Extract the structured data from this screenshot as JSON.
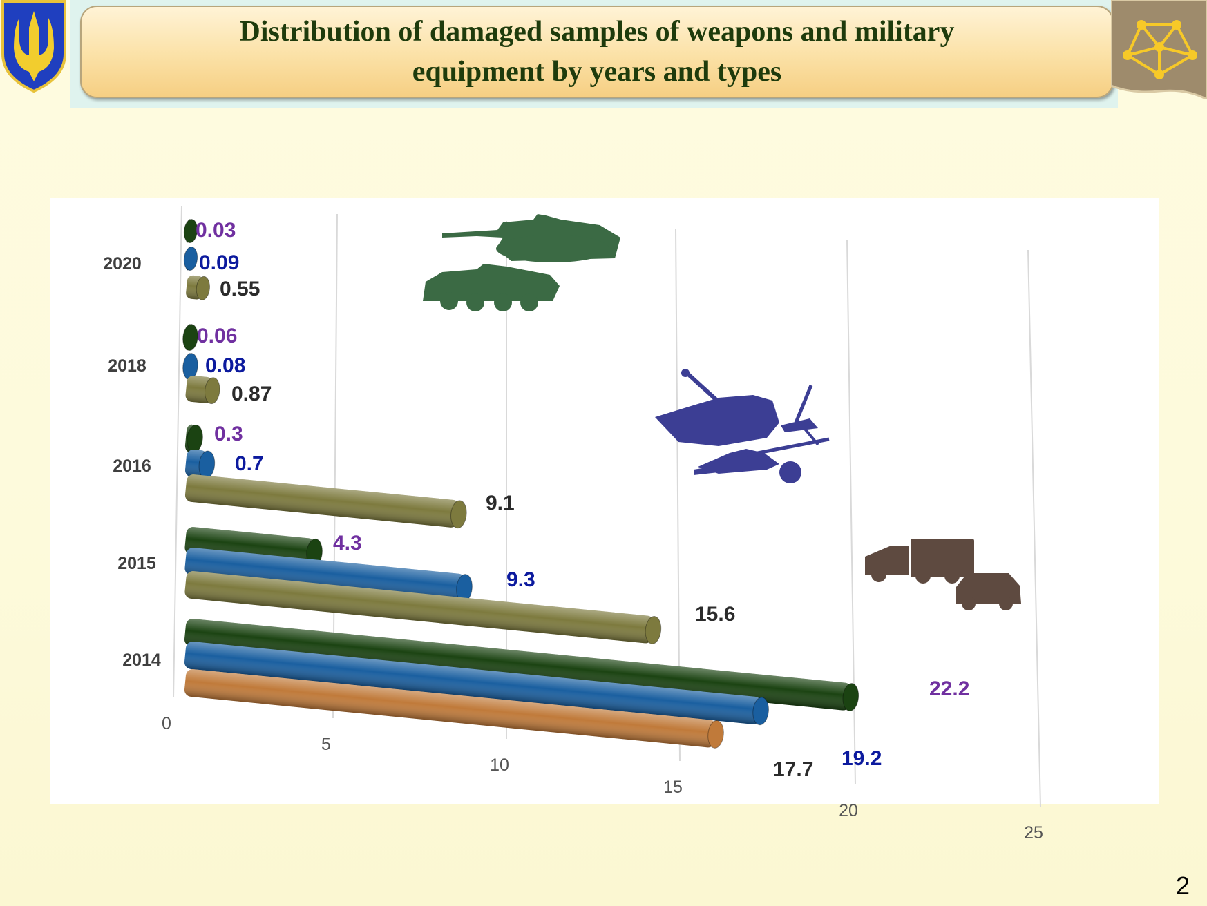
{
  "title": {
    "line1": "Distribution of damaged  samples of weapons and military",
    "line2": "equipment by years and types"
  },
  "page_number": "2",
  "icons": {
    "left": "ukraine-trident-emblem-icon",
    "right": "network-node-logo-icon",
    "armored_vehicles": "tank-and-apc-silhouette-icon",
    "artillery": "artillery-silhouette-icon",
    "vehicles": "trucks-silhouette-icon"
  },
  "colors": {
    "armored": "#1b4312",
    "artillery_bar": "#1a5fa0",
    "vehicles_bar": "#7d7a3e",
    "vehicles_2014": "#c07a3a",
    "label_purple": "#7030a0",
    "label_blue": "#0c1a9e",
    "label_dark": "#2b2b2b"
  },
  "chart_data": {
    "type": "bar",
    "orientation": "horizontal",
    "style": "3d-cylinder",
    "categories": [
      "2020",
      "2018",
      "2016",
      "2015",
      "2014"
    ],
    "series": [
      {
        "values": [
          0.03,
          0.06,
          0.3,
          4.3,
          22.2
        ],
        "color": "#1b4312",
        "label_color": "#7030a0"
      },
      {
        "values": [
          0.09,
          0.08,
          0.7,
          9.3,
          19.2
        ],
        "color": "#1a5fa0",
        "label_color": "#0c1a9e"
      },
      {
        "values": [
          0.55,
          0.87,
          9.1,
          15.6,
          17.7
        ],
        "color": "#7d7a3e",
        "label_color": "#2b2b2b"
      }
    ],
    "value_labels": [
      [
        "0.03",
        "0.06",
        "0.3",
        "4.3",
        "22.2"
      ],
      [
        "0.09",
        "0.08",
        "0.7",
        "9.3",
        "19.2"
      ],
      [
        "0.55",
        "0.87",
        "9.1",
        "15.6",
        "17.7"
      ]
    ],
    "x_ticks": [
      "0",
      "5",
      "10",
      "15",
      "20",
      "25"
    ],
    "xlim": [
      0,
      25
    ],
    "grid": true,
    "legend": "none"
  }
}
